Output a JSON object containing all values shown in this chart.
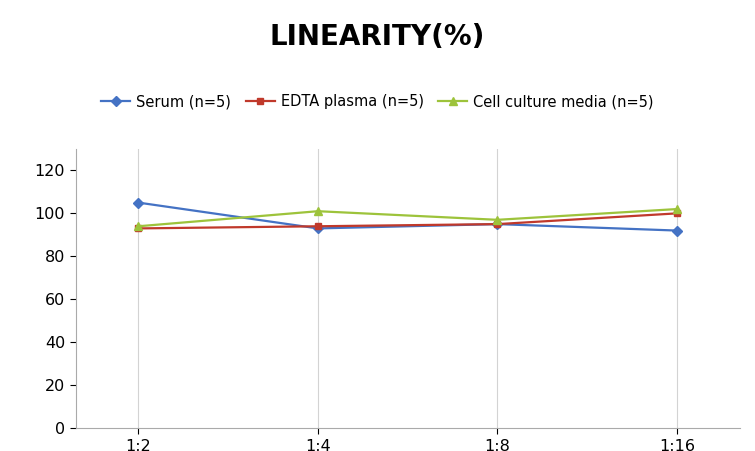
{
  "title": "LINEARITY(%)",
  "title_fontsize": 20,
  "title_fontweight": "bold",
  "x_labels": [
    "1:2",
    "1:4",
    "1:8",
    "1:16"
  ],
  "x_positions": [
    0,
    1,
    2,
    3
  ],
  "series": [
    {
      "label": "Serum (n=5)",
      "values": [
        105,
        93,
        95,
        92
      ],
      "color": "#4472C4",
      "marker": "D",
      "markersize": 5,
      "linewidth": 1.6
    },
    {
      "label": "EDTA plasma (n=5)",
      "values": [
        93,
        94,
        95,
        100
      ],
      "color": "#C0392B",
      "marker": "s",
      "markersize": 5,
      "linewidth": 1.6
    },
    {
      "label": "Cell culture media (n=5)",
      "values": [
        94,
        101,
        97,
        102
      ],
      "color": "#9DC33B",
      "marker": "^",
      "markersize": 6,
      "linewidth": 1.6
    }
  ],
  "ylim": [
    0,
    130
  ],
  "yticks": [
    0,
    20,
    40,
    60,
    80,
    100,
    120
  ],
  "background_color": "#ffffff",
  "grid_color": "#d3d3d3",
  "legend_fontsize": 10.5,
  "axis_tick_fontsize": 11.5,
  "xlim": [
    -0.35,
    3.35
  ]
}
